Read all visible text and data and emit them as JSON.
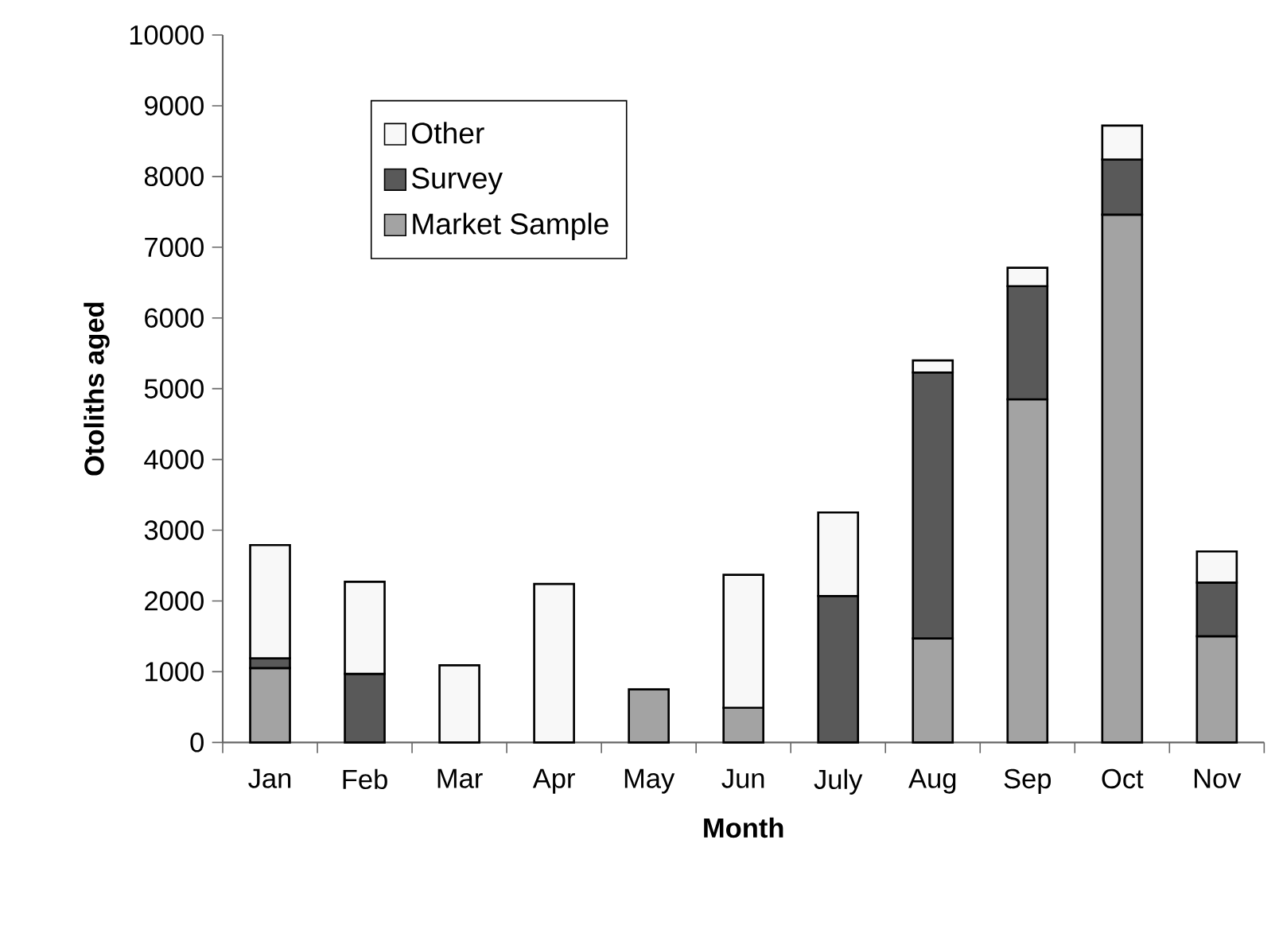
{
  "chart_data": {
    "type": "bar",
    "stacked": true,
    "xlabel": "Month",
    "ylabel": "Otoliths aged",
    "categories": [
      "Jan",
      "Feb",
      "Mar",
      "Apr",
      "May",
      "Jun",
      "July",
      "Aug",
      "Sep",
      "Oct",
      "Nov"
    ],
    "series": [
      {
        "name": "Market Sample",
        "color": "#a3a3a3",
        "values": [
          1050,
          0,
          0,
          0,
          750,
          490,
          0,
          1470,
          4850,
          7460,
          1500
        ]
      },
      {
        "name": "Survey",
        "color": "#595959",
        "values": [
          140,
          970,
          0,
          0,
          0,
          0,
          2070,
          3760,
          1600,
          780,
          760
        ]
      },
      {
        "name": "Other",
        "color": "#f8f8f8",
        "values": [
          1600,
          1300,
          1090,
          2240,
          0,
          1880,
          1180,
          170,
          260,
          480,
          440
        ]
      }
    ],
    "ylim": [
      0,
      10000
    ],
    "yticks": [
      0,
      1000,
      2000,
      3000,
      4000,
      5000,
      6000,
      7000,
      8000,
      9000,
      10000
    ],
    "grid": false,
    "legend": "top left"
  }
}
